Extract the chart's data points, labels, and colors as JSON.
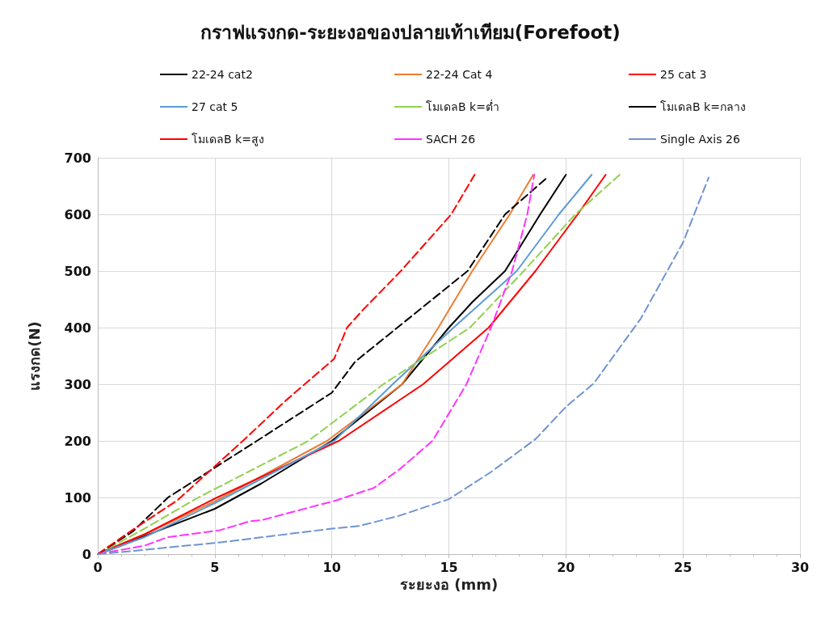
{
  "chart_data": {
    "type": "line",
    "title": "กราฟแรงกด-ระยะงอของปลายเท้าเทียม(Forefoot)",
    "xlabel": "ระยะงอ (mm)",
    "ylabel": "แรงกด(N)",
    "xlim": [
      0,
      30
    ],
    "xticks": [
      0,
      5,
      10,
      15,
      20,
      25,
      30
    ],
    "ylim": [
      0,
      700
    ],
    "yticks": [
      0,
      100,
      200,
      300,
      400,
      500,
      600,
      700
    ],
    "grid": true,
    "legend": "top",
    "marker": "none",
    "series": [
      {
        "name": "22-24 cat2",
        "color": "#000000",
        "line_style": "solid",
        "x": [
          0,
          1,
          2,
          3,
          5,
          7,
          10,
          13,
          15,
          16,
          17.4,
          18.9,
          20
        ],
        "values": [
          0,
          15,
          32,
          48,
          80,
          125,
          200,
          300,
          400,
          445,
          500,
          600,
          670
        ]
      },
      {
        "name": "22-24 Cat 4",
        "color": "#ed7d31",
        "line_style": "solid",
        "x": [
          0,
          2,
          5,
          9.8,
          13,
          14.55,
          16,
          17.6,
          18.6
        ],
        "values": [
          0,
          35,
          93,
          200,
          300,
          400,
          500,
          600,
          670
        ]
      },
      {
        "name": "25 cat 3",
        "color": "#ff0000",
        "line_style": "solid",
        "x": [
          0,
          2,
          5.1,
          10.3,
          13.9,
          16.7,
          18.7,
          20.5,
          21.7
        ],
        "values": [
          0,
          35,
          100,
          200,
          300,
          400,
          500,
          600,
          670
        ]
      },
      {
        "name": "27 cat 5",
        "color": "#5b9bd5",
        "line_style": "solid",
        "x": [
          0,
          2,
          5,
          10.1,
          12.6,
          15.2,
          17.9,
          19.7,
          21.1
        ],
        "values": [
          0,
          30,
          90,
          200,
          300,
          400,
          500,
          600,
          670
        ]
      },
      {
        "name": "โมเดลB k=ต่ำ",
        "color": "#92d050",
        "line_style": "dashed",
        "x": [
          0,
          2,
          4.3,
          9,
          12.2,
          15.9,
          18.2,
          20.4,
          22.3
        ],
        "values": [
          0,
          45,
          100,
          200,
          300,
          400,
          500,
          600,
          670
        ]
      },
      {
        "name": "โมเดลB k=กลาง",
        "color": "#000000",
        "line_style": "dashed",
        "x": [
          0,
          1.5,
          3,
          6.8,
          10,
          11,
          12.8,
          15.8,
          17.4,
          19.2
        ],
        "values": [
          0,
          40,
          100,
          200,
          285,
          340,
          400,
          500,
          600,
          665
        ]
      },
      {
        "name": "โมเดลB k=สูง",
        "color": "#ff0000",
        "line_style": "dashed",
        "x": [
          0,
          1.6,
          3.4,
          6.2,
          8,
          10.1,
          10.65,
          11.3,
          12.95,
          15.1,
          16.1
        ],
        "values": [
          0,
          46,
          95,
          200,
          270,
          345,
          400,
          430,
          500,
          600,
          670
        ]
      },
      {
        "name": "SACH 26",
        "color": "#ff33ff",
        "line_style": "dashed",
        "x": [
          0,
          2,
          3,
          5.2,
          6.5,
          7,
          10.2,
          11.8,
          12.9,
          14.3,
          15.75,
          16.8,
          17.7,
          18.35,
          18.65
        ],
        "values": [
          0,
          15,
          30,
          42,
          58,
          60,
          95,
          117,
          150,
          200,
          300,
          400,
          500,
          600,
          670
        ]
      },
      {
        "name": "Single Axis 26",
        "color": "#6f94d0",
        "line_style": "dashed",
        "x": [
          0,
          1.1,
          5.3,
          10,
          11.2,
          12.9,
          15,
          16.8,
          18.7,
          20,
          21.2,
          23.2,
          25,
          26.1
        ],
        "values": [
          0,
          4,
          21,
          45,
          50,
          68,
          97,
          145,
          203,
          260,
          302,
          416,
          550,
          665
        ]
      }
    ]
  }
}
